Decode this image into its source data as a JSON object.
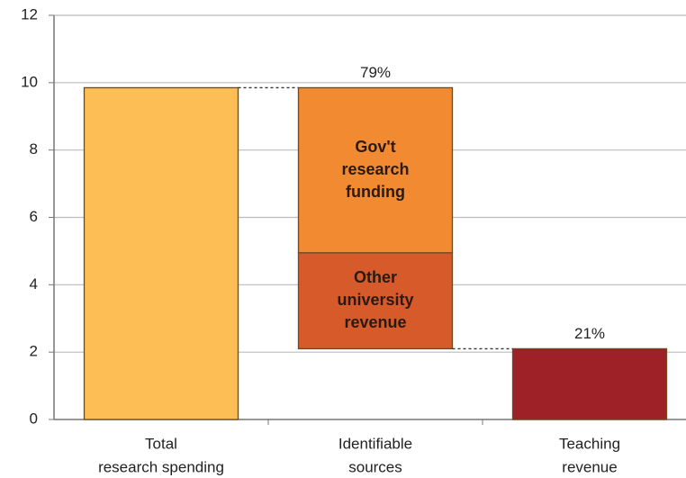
{
  "chart_data": {
    "type": "waterfall",
    "categories": [
      [
        "Total",
        "research spending"
      ],
      [
        "Identifiable",
        "sources"
      ],
      [
        "Teaching",
        "revenue"
      ]
    ],
    "bars": [
      {
        "segments": [
          {
            "value": 9.85,
            "color": "#fdbe55"
          }
        ]
      },
      {
        "label": "79%",
        "segments": [
          {
            "name": [
              "Other",
              "university",
              "revenue"
            ],
            "value": 2.85,
            "color": "#d65a2a"
          },
          {
            "name": [
              "Gov't",
              "research",
              "funding"
            ],
            "value": 4.9,
            "color": "#f28a31"
          }
        ]
      },
      {
        "label": "21%",
        "segments": [
          {
            "value": 2.1,
            "color": "#9e2128"
          }
        ]
      }
    ],
    "ylim": [
      0,
      12
    ],
    "yticks": [
      0,
      2,
      4,
      6,
      8,
      10,
      12
    ],
    "grid": true
  }
}
